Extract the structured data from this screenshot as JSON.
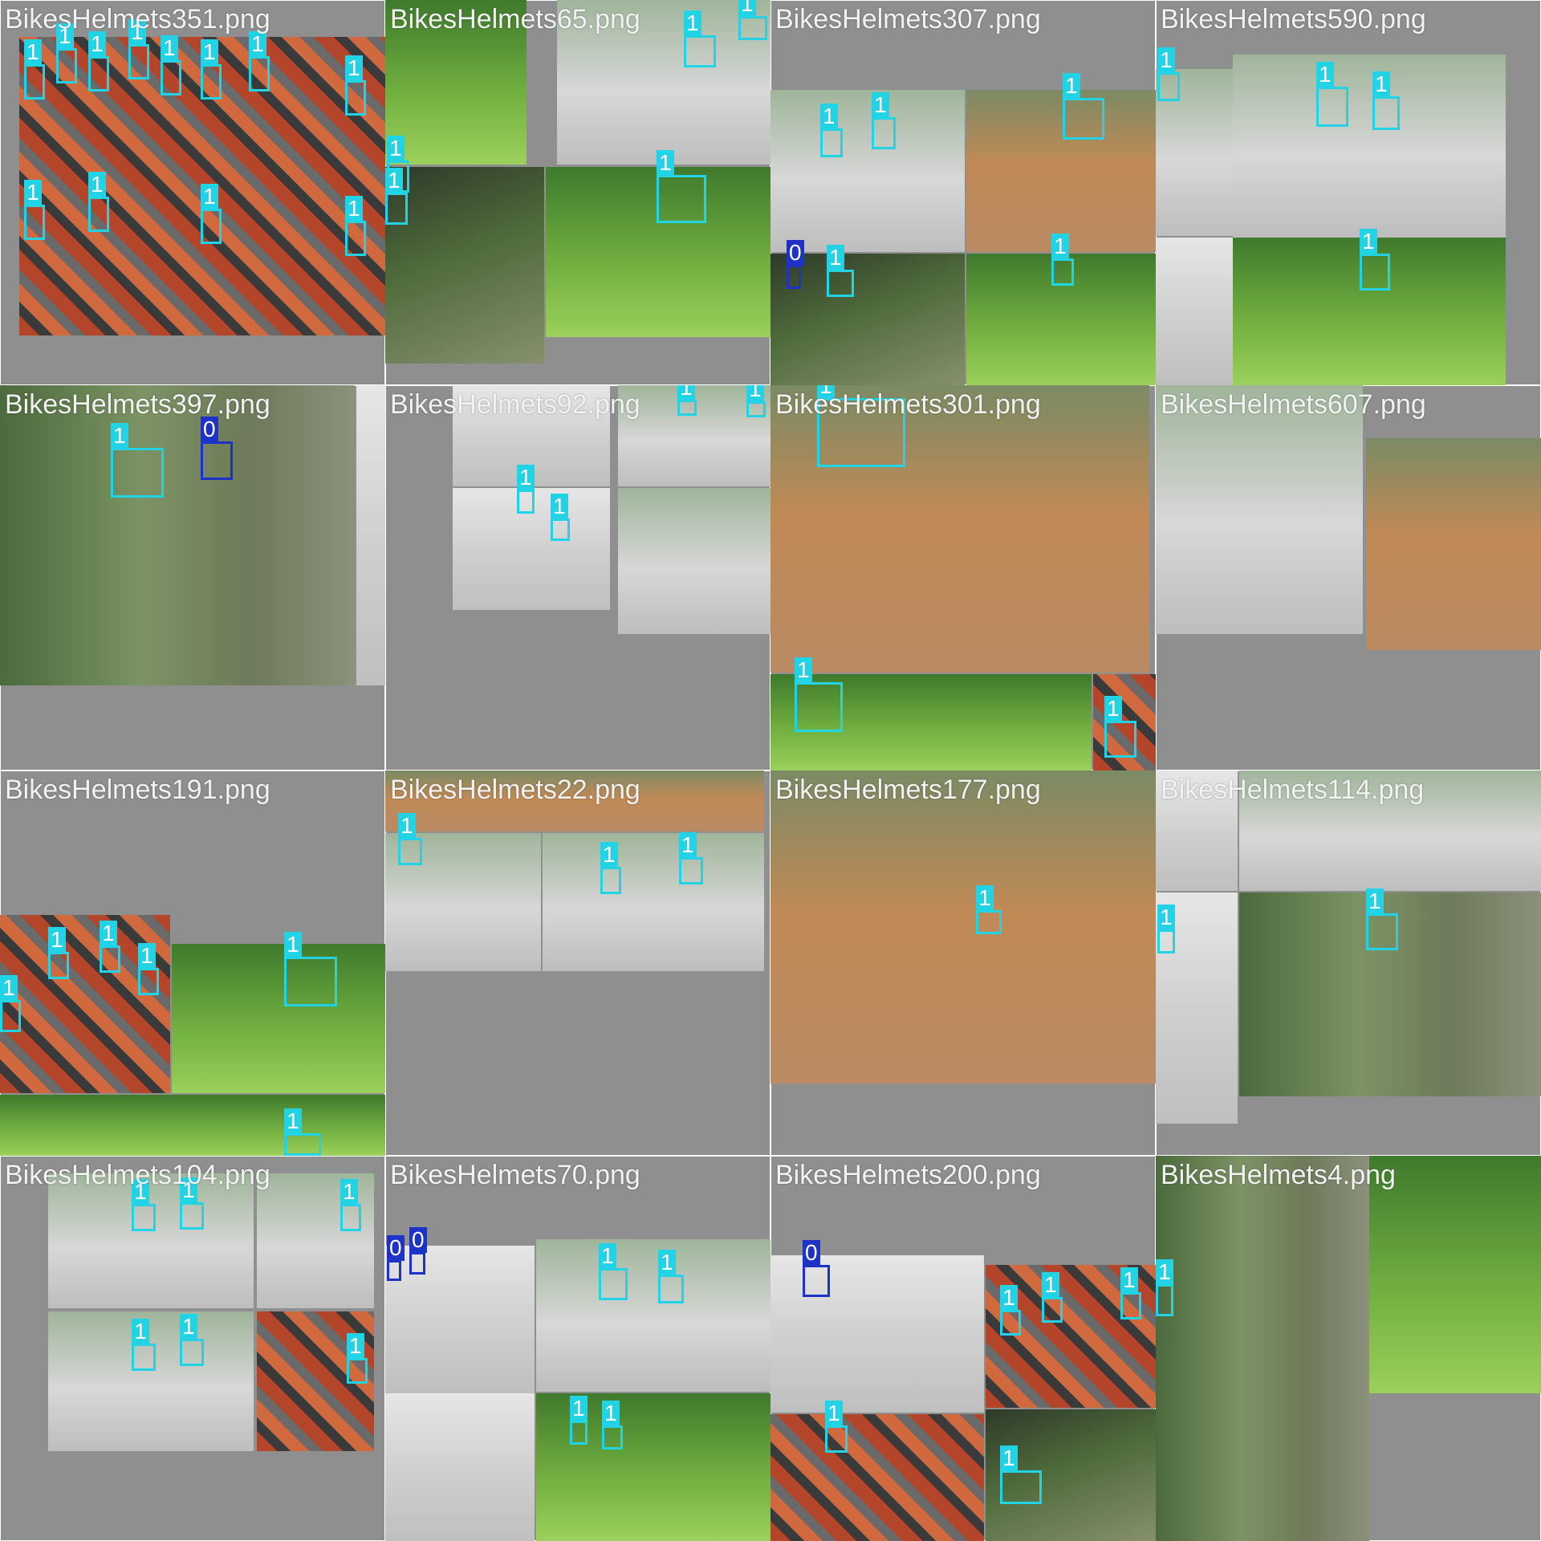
{
  "mosaic": {
    "colors": {
      "class1": "#22d3e5",
      "class0": "#1d33c8",
      "background": "#727272"
    },
    "tiles": [
      {
        "file": "BikesHelmets351.png",
        "labels": [
          "1",
          "1",
          "1",
          "1",
          "1",
          "1",
          "1",
          "1",
          "1",
          "1",
          "1",
          "1"
        ]
      },
      {
        "file": "BikesHelmets65.png",
        "labels": [
          "1",
          "1",
          "1",
          "1",
          "1"
        ]
      },
      {
        "file": "BikesHelmets307.png",
        "labels": [
          "1",
          "1",
          "1",
          "1",
          "1",
          "0"
        ]
      },
      {
        "file": "BikesHelmets590.png",
        "labels": [
          "1",
          "1",
          "1",
          "1"
        ]
      },
      {
        "file": "BikesHelmets397.png",
        "labels": [
          "1",
          "0"
        ]
      },
      {
        "file": "BikesHelmets92.png",
        "labels": [
          "1",
          "1",
          "1",
          "1"
        ]
      },
      {
        "file": "BikesHelmets301.png",
        "labels": [
          "1",
          "1",
          "1"
        ]
      },
      {
        "file": "BikesHelmets607.png",
        "labels": []
      },
      {
        "file": "BikesHelmets191.png",
        "labels": [
          "1",
          "1",
          "1",
          "1",
          "1",
          "1"
        ]
      },
      {
        "file": "BikesHelmets22.png",
        "labels": [
          "1",
          "1",
          "1"
        ]
      },
      {
        "file": "BikesHelmets177.png",
        "labels": [
          "1"
        ]
      },
      {
        "file": "BikesHelmets114.png",
        "labels": [
          "1",
          "1"
        ]
      },
      {
        "file": "BikesHelmets104.png",
        "labels": [
          "1",
          "1",
          "1",
          "1",
          "1",
          "1"
        ]
      },
      {
        "file": "BikesHelmets70.png",
        "labels": [
          "1",
          "1",
          "0",
          "0",
          "1",
          "1"
        ]
      },
      {
        "file": "BikesHelmets200.png",
        "labels": [
          "0",
          "1",
          "1",
          "1",
          "1",
          "1"
        ]
      },
      {
        "file": "BikesHelmets4.png",
        "labels": [
          "1"
        ]
      }
    ]
  }
}
